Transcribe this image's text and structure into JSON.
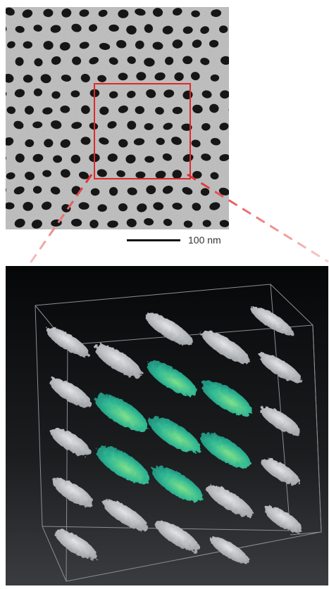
{
  "scale_bar": {
    "label": "100 nm"
  },
  "colors": {
    "highlight_box": "#e0292b",
    "micrograph_background": "#b9b9b9",
    "pore": "#161616",
    "highlighted_domain": "#2ab38f",
    "other_domain": "#b8bcc0"
  }
}
